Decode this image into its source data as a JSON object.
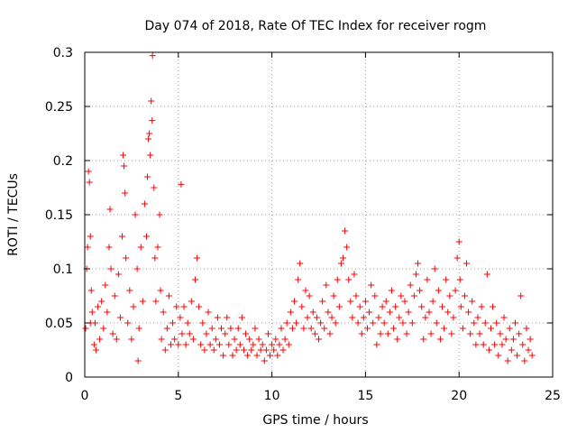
{
  "chart_data": {
    "type": "scatter",
    "title": "Day 074 of 2018, Rate Of TEC Index for receiver rogm",
    "xlabel": "GPS time / hours",
    "ylabel": "ROTI / TECUs",
    "xlim": [
      0,
      25
    ],
    "ylim": [
      0,
      0.3
    ],
    "xticks": [
      0,
      5,
      10,
      15,
      20,
      25
    ],
    "xtick_labels": [
      "0",
      "5",
      "10",
      "15",
      "20",
      "25"
    ],
    "yticks": [
      0,
      0.05,
      0.1,
      0.15,
      0.2,
      0.25,
      0.3
    ],
    "ytick_labels": [
      "0",
      "0.05",
      "0.1",
      "0.15",
      "0.2",
      "0.25",
      "0.3"
    ],
    "grid": true,
    "marker": "+",
    "series": [
      {
        "name": "ROTI",
        "color": "#ff0000",
        "points": [
          [
            0.05,
            0.045
          ],
          [
            0.1,
            0.1
          ],
          [
            0.15,
            0.12
          ],
          [
            0.2,
            0.19
          ],
          [
            0.25,
            0.18
          ],
          [
            0.3,
            0.13
          ],
          [
            0.3,
            0.05
          ],
          [
            0.35,
            0.08
          ],
          [
            0.4,
            0.06
          ],
          [
            0.5,
            0.03
          ],
          [
            0.55,
            0.05
          ],
          [
            0.6,
            0.025
          ],
          [
            0.7,
            0.065
          ],
          [
            0.8,
            0.035
          ],
          [
            0.9,
            0.07
          ],
          [
            1.0,
            0.045
          ],
          [
            1.1,
            0.085
          ],
          [
            1.2,
            0.06
          ],
          [
            1.3,
            0.12
          ],
          [
            1.35,
            0.155
          ],
          [
            1.4,
            0.1
          ],
          [
            1.5,
            0.04
          ],
          [
            1.6,
            0.075
          ],
          [
            1.7,
            0.035
          ],
          [
            1.8,
            0.095
          ],
          [
            1.9,
            0.055
          ],
          [
            2.0,
            0.13
          ],
          [
            2.05,
            0.205
          ],
          [
            2.1,
            0.195
          ],
          [
            2.15,
            0.17
          ],
          [
            2.2,
            0.11
          ],
          [
            2.3,
            0.05
          ],
          [
            2.4,
            0.08
          ],
          [
            2.5,
            0.035
          ],
          [
            2.6,
            0.065
          ],
          [
            2.7,
            0.15
          ],
          [
            2.8,
            0.1
          ],
          [
            2.85,
            0.015
          ],
          [
            2.9,
            0.045
          ],
          [
            3.0,
            0.12
          ],
          [
            3.1,
            0.07
          ],
          [
            3.2,
            0.16
          ],
          [
            3.3,
            0.13
          ],
          [
            3.35,
            0.185
          ],
          [
            3.4,
            0.22
          ],
          [
            3.45,
            0.225
          ],
          [
            3.5,
            0.205
          ],
          [
            3.55,
            0.255
          ],
          [
            3.6,
            0.237
          ],
          [
            3.62,
            0.297
          ],
          [
            3.7,
            0.175
          ],
          [
            3.75,
            0.11
          ],
          [
            3.8,
            0.07
          ],
          [
            3.9,
            0.12
          ],
          [
            4.0,
            0.15
          ],
          [
            4.05,
            0.08
          ],
          [
            4.1,
            0.035
          ],
          [
            4.2,
            0.06
          ],
          [
            4.3,
            0.025
          ],
          [
            4.4,
            0.045
          ],
          [
            4.5,
            0.075
          ],
          [
            4.6,
            0.03
          ],
          [
            4.7,
            0.05
          ],
          [
            4.8,
            0.035
          ],
          [
            4.9,
            0.065
          ],
          [
            5.0,
            0.03
          ],
          [
            5.1,
            0.055
          ],
          [
            5.15,
            0.178
          ],
          [
            5.2,
            0.04
          ],
          [
            5.3,
            0.065
          ],
          [
            5.4,
            0.03
          ],
          [
            5.5,
            0.05
          ],
          [
            5.6,
            0.04
          ],
          [
            5.7,
            0.07
          ],
          [
            5.8,
            0.035
          ],
          [
            5.9,
            0.09
          ],
          [
            6.0,
            0.11
          ],
          [
            6.1,
            0.065
          ],
          [
            6.2,
            0.03
          ],
          [
            6.3,
            0.05
          ],
          [
            6.4,
            0.025
          ],
          [
            6.5,
            0.04
          ],
          [
            6.6,
            0.06
          ],
          [
            6.7,
            0.03
          ],
          [
            6.8,
            0.045
          ],
          [
            6.9,
            0.025
          ],
          [
            7.0,
            0.035
          ],
          [
            7.1,
            0.055
          ],
          [
            7.2,
            0.03
          ],
          [
            7.3,
            0.045
          ],
          [
            7.4,
            0.02
          ],
          [
            7.5,
            0.04
          ],
          [
            7.6,
            0.055
          ],
          [
            7.7,
            0.03
          ],
          [
            7.8,
            0.045
          ],
          [
            7.9,
            0.02
          ],
          [
            8.0,
            0.035
          ],
          [
            8.1,
            0.025
          ],
          [
            8.2,
            0.045
          ],
          [
            8.3,
            0.03
          ],
          [
            8.4,
            0.055
          ],
          [
            8.5,
            0.025
          ],
          [
            8.6,
            0.04
          ],
          [
            8.7,
            0.02
          ],
          [
            8.8,
            0.035
          ],
          [
            8.9,
            0.025
          ],
          [
            9.0,
            0.03
          ],
          [
            9.1,
            0.045
          ],
          [
            9.2,
            0.02
          ],
          [
            9.3,
            0.035
          ],
          [
            9.4,
            0.025
          ],
          [
            9.5,
            0.03
          ],
          [
            9.6,
            0.015
          ],
          [
            9.7,
            0.025
          ],
          [
            9.8,
            0.04
          ],
          [
            9.9,
            0.02
          ],
          [
            10.0,
            0.03
          ],
          [
            10.1,
            0.025
          ],
          [
            10.2,
            0.035
          ],
          [
            10.3,
            0.02
          ],
          [
            10.4,
            0.03
          ],
          [
            10.5,
            0.045
          ],
          [
            10.6,
            0.025
          ],
          [
            10.7,
            0.035
          ],
          [
            10.8,
            0.05
          ],
          [
            10.9,
            0.03
          ],
          [
            11.0,
            0.06
          ],
          [
            11.1,
            0.045
          ],
          [
            11.2,
            0.07
          ],
          [
            11.3,
            0.05
          ],
          [
            11.4,
            0.09
          ],
          [
            11.5,
            0.105
          ],
          [
            11.6,
            0.065
          ],
          [
            11.7,
            0.045
          ],
          [
            11.8,
            0.08
          ],
          [
            11.9,
            0.055
          ],
          [
            12.0,
            0.075
          ],
          [
            12.1,
            0.045
          ],
          [
            12.2,
            0.06
          ],
          [
            12.3,
            0.04
          ],
          [
            12.4,
            0.055
          ],
          [
            12.5,
            0.035
          ],
          [
            12.6,
            0.05
          ],
          [
            12.7,
            0.07
          ],
          [
            12.8,
            0.045
          ],
          [
            12.9,
            0.085
          ],
          [
            13.0,
            0.06
          ],
          [
            13.1,
            0.04
          ],
          [
            13.2,
            0.055
          ],
          [
            13.3,
            0.075
          ],
          [
            13.4,
            0.05
          ],
          [
            13.5,
            0.09
          ],
          [
            13.6,
            0.065
          ],
          [
            13.7,
            0.105
          ],
          [
            13.8,
            0.11
          ],
          [
            13.9,
            0.135
          ],
          [
            14.0,
            0.12
          ],
          [
            14.1,
            0.09
          ],
          [
            14.2,
            0.07
          ],
          [
            14.3,
            0.055
          ],
          [
            14.4,
            0.095
          ],
          [
            14.5,
            0.075
          ],
          [
            14.6,
            0.05
          ],
          [
            14.7,
            0.065
          ],
          [
            14.8,
            0.04
          ],
          [
            14.9,
            0.055
          ],
          [
            15.0,
            0.07
          ],
          [
            15.1,
            0.045
          ],
          [
            15.2,
            0.06
          ],
          [
            15.3,
            0.085
          ],
          [
            15.4,
            0.05
          ],
          [
            15.5,
            0.075
          ],
          [
            15.6,
            0.03
          ],
          [
            15.7,
            0.055
          ],
          [
            15.8,
            0.04
          ],
          [
            15.9,
            0.065
          ],
          [
            16.0,
            0.05
          ],
          [
            16.1,
            0.07
          ],
          [
            16.2,
            0.04
          ],
          [
            16.3,
            0.06
          ],
          [
            16.4,
            0.08
          ],
          [
            16.5,
            0.045
          ],
          [
            16.6,
            0.065
          ],
          [
            16.7,
            0.035
          ],
          [
            16.8,
            0.055
          ],
          [
            16.9,
            0.075
          ],
          [
            17.0,
            0.05
          ],
          [
            17.1,
            0.07
          ],
          [
            17.2,
            0.04
          ],
          [
            17.3,
            0.06
          ],
          [
            17.4,
            0.085
          ],
          [
            17.5,
            0.05
          ],
          [
            17.6,
            0.075
          ],
          [
            17.7,
            0.095
          ],
          [
            17.8,
            0.105
          ],
          [
            17.9,
            0.08
          ],
          [
            18.0,
            0.065
          ],
          [
            18.1,
            0.035
          ],
          [
            18.2,
            0.055
          ],
          [
            18.3,
            0.09
          ],
          [
            18.4,
            0.06
          ],
          [
            18.5,
            0.04
          ],
          [
            18.6,
            0.07
          ],
          [
            18.7,
            0.1
          ],
          [
            18.8,
            0.05
          ],
          [
            18.9,
            0.08
          ],
          [
            19.0,
            0.035
          ],
          [
            19.1,
            0.065
          ],
          [
            19.2,
            0.045
          ],
          [
            19.3,
            0.09
          ],
          [
            19.4,
            0.06
          ],
          [
            19.5,
            0.075
          ],
          [
            19.6,
            0.04
          ],
          [
            19.7,
            0.055
          ],
          [
            19.8,
            0.08
          ],
          [
            19.9,
            0.11
          ],
          [
            20.0,
            0.125
          ],
          [
            20.05,
            0.09
          ],
          [
            20.1,
            0.065
          ],
          [
            20.2,
            0.045
          ],
          [
            20.3,
            0.075
          ],
          [
            20.4,
            0.105
          ],
          [
            20.5,
            0.06
          ],
          [
            20.6,
            0.04
          ],
          [
            20.7,
            0.07
          ],
          [
            20.8,
            0.05
          ],
          [
            20.9,
            0.03
          ],
          [
            21.0,
            0.055
          ],
          [
            21.1,
            0.04
          ],
          [
            21.2,
            0.065
          ],
          [
            21.3,
            0.03
          ],
          [
            21.4,
            0.05
          ],
          [
            21.5,
            0.095
          ],
          [
            21.6,
            0.025
          ],
          [
            21.7,
            0.045
          ],
          [
            21.8,
            0.065
          ],
          [
            21.9,
            0.03
          ],
          [
            22.0,
            0.05
          ],
          [
            22.1,
            0.02
          ],
          [
            22.2,
            0.04
          ],
          [
            22.3,
            0.03
          ],
          [
            22.4,
            0.055
          ],
          [
            22.5,
            0.035
          ],
          [
            22.6,
            0.015
          ],
          [
            22.7,
            0.045
          ],
          [
            22.8,
            0.025
          ],
          [
            22.9,
            0.035
          ],
          [
            23.0,
            0.05
          ],
          [
            23.1,
            0.02
          ],
          [
            23.2,
            0.04
          ],
          [
            23.3,
            0.075
          ],
          [
            23.4,
            0.03
          ],
          [
            23.5,
            0.015
          ],
          [
            23.6,
            0.045
          ],
          [
            23.7,
            0.025
          ],
          [
            23.8,
            0.035
          ],
          [
            23.9,
            0.02
          ]
        ]
      }
    ]
  }
}
